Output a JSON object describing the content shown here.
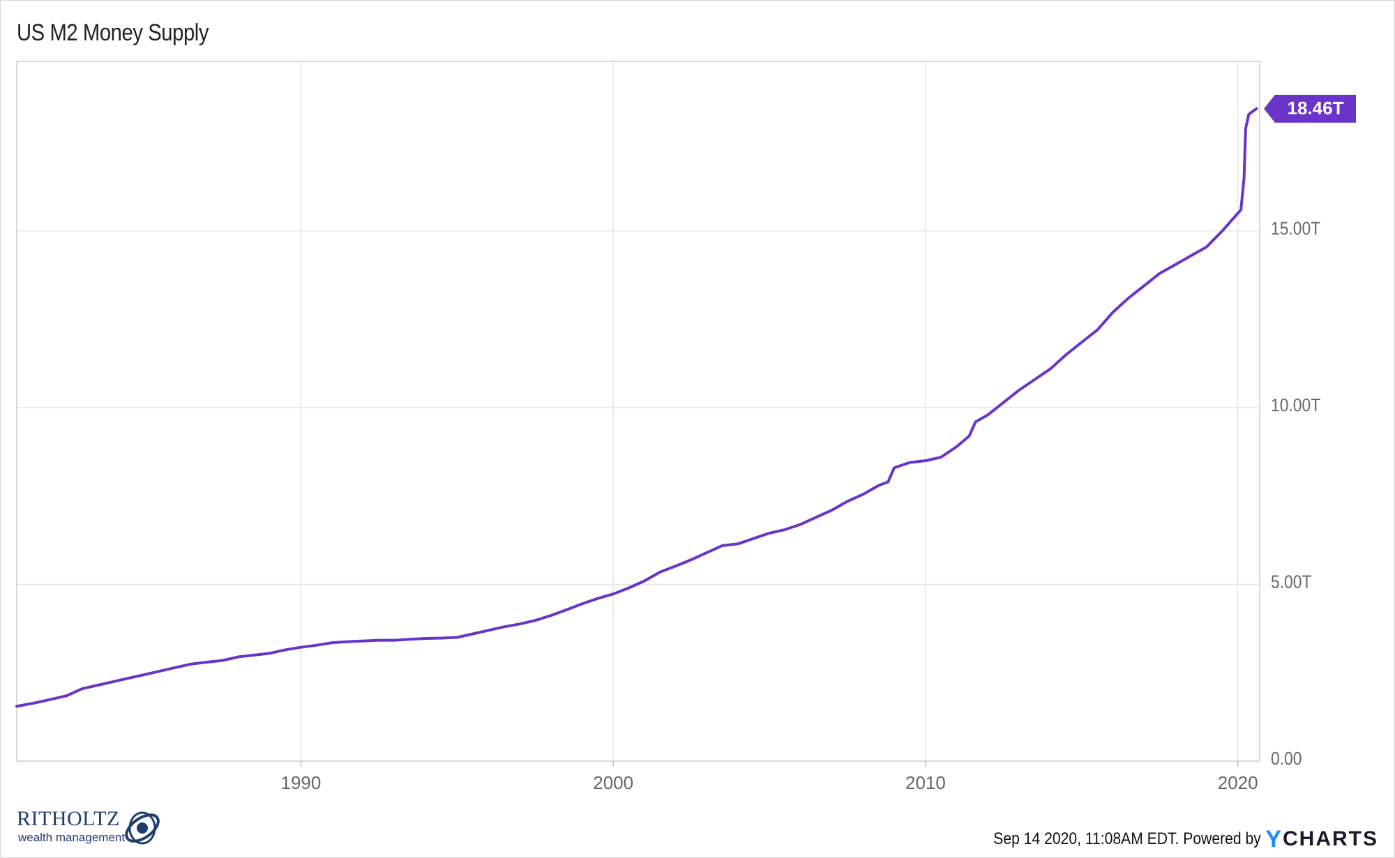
{
  "colors": {
    "line": "#6a34c8",
    "grid": "#e6e6e6",
    "axis_text": "#666666",
    "badge": "#6a34c8"
  },
  "chart_data": {
    "type": "line",
    "title": "US M2 Money Supply",
    "xlabel": "",
    "ylabel": "",
    "xlim": [
      1980.9,
      2020.7
    ],
    "ylim": [
      0,
      19.8
    ],
    "x_ticks": [
      1990,
      2000,
      2010,
      2020
    ],
    "x_tick_labels": [
      "1990",
      "2000",
      "2010",
      "2020"
    ],
    "y_ticks": [
      0,
      5,
      10,
      15
    ],
    "y_tick_labels": [
      "0.00",
      "5.00T",
      "10.00T",
      "15.00T"
    ],
    "grid": true,
    "legend": "none",
    "last_value_label": "18.46T",
    "series": [
      {
        "x": [
          1980.9,
          1981.5,
          1982.0,
          1982.5,
          1983.0,
          1983.5,
          1984.0,
          1984.5,
          1985.0,
          1985.5,
          1986.0,
          1986.5,
          1987.0,
          1987.5,
          1988.0,
          1988.5,
          1989.0,
          1989.5,
          1990.0,
          1990.5,
          1991.0,
          1991.5,
          1992.0,
          1992.5,
          1993.0,
          1993.5,
          1994.0,
          1994.5,
          1995.0,
          1995.5,
          1996.0,
          1996.5,
          1997.0,
          1997.5,
          1998.0,
          1998.5,
          1999.0,
          1999.5,
          2000.0,
          2000.5,
          2001.0,
          2001.5,
          2002.0,
          2002.5,
          2003.0,
          2003.5,
          2004.0,
          2004.5,
          2005.0,
          2005.5,
          2006.0,
          2006.5,
          2007.0,
          2007.5,
          2008.0,
          2008.5,
          2008.8,
          2009.0,
          2009.5,
          2010.0,
          2010.5,
          2011.0,
          2011.4,
          2011.6,
          2012.0,
          2012.5,
          2013.0,
          2013.5,
          2014.0,
          2014.5,
          2015.0,
          2015.5,
          2016.0,
          2016.5,
          2017.0,
          2017.5,
          2018.0,
          2018.5,
          2019.0,
          2019.5,
          2019.9,
          2020.1,
          2020.2,
          2020.25,
          2020.35,
          2020.5,
          2020.6
        ],
        "y": [
          1.55,
          1.65,
          1.75,
          1.85,
          2.05,
          2.15,
          2.25,
          2.35,
          2.45,
          2.55,
          2.65,
          2.75,
          2.8,
          2.85,
          2.95,
          3.0,
          3.05,
          3.15,
          3.22,
          3.28,
          3.35,
          3.38,
          3.4,
          3.42,
          3.42,
          3.45,
          3.47,
          3.48,
          3.5,
          3.6,
          3.7,
          3.8,
          3.88,
          3.98,
          4.12,
          4.28,
          4.45,
          4.6,
          4.73,
          4.9,
          5.1,
          5.35,
          5.52,
          5.7,
          5.9,
          6.1,
          6.15,
          6.3,
          6.45,
          6.55,
          6.7,
          6.9,
          7.1,
          7.35,
          7.55,
          7.8,
          7.9,
          8.3,
          8.45,
          8.5,
          8.6,
          8.9,
          9.2,
          9.6,
          9.8,
          10.15,
          10.5,
          10.8,
          11.1,
          11.5,
          11.85,
          12.2,
          12.7,
          13.1,
          13.45,
          13.8,
          14.05,
          14.3,
          14.55,
          15.0,
          15.4,
          15.6,
          16.5,
          17.9,
          18.3,
          18.4,
          18.46
        ]
      }
    ]
  },
  "footer": {
    "timestamp": "Sep 14 2020, 11:08AM EDT.",
    "powered_by": "Powered by",
    "brand_y": "Y",
    "brand_rest": "CHARTS"
  },
  "logo": {
    "name": "RITHOLTZ",
    "subtitle": "wealth management"
  }
}
